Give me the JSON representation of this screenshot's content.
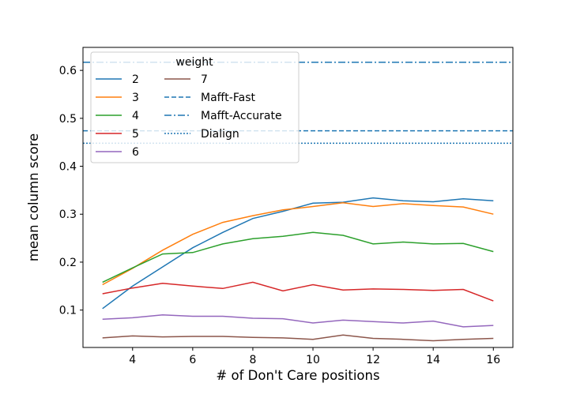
{
  "chart_data": {
    "type": "line",
    "title": "",
    "xlabel": "# of Don't Care positions",
    "ylabel": "mean column score",
    "xlim": [
      2.35,
      16.65
    ],
    "ylim": [
      0.022,
      0.648
    ],
    "xticks": [
      4,
      6,
      8,
      10,
      12,
      14,
      16
    ],
    "yticks": [
      0.1,
      0.2,
      0.3,
      0.4,
      0.5,
      0.6
    ],
    "grid": false,
    "legend": {
      "title": "weight",
      "placement": "upper-left",
      "columns": 2
    },
    "x": [
      3,
      4,
      5,
      6,
      7,
      8,
      9,
      10,
      11,
      12,
      13,
      14,
      15,
      16
    ],
    "series": [
      {
        "name": "2",
        "color": "#1f77b4",
        "values": [
          0.103,
          0.15,
          0.19,
          0.23,
          0.262,
          0.291,
          0.306,
          0.323,
          0.325,
          0.334,
          0.328,
          0.326,
          0.332,
          0.328
        ]
      },
      {
        "name": "3",
        "color": "#ff7f0e",
        "values": [
          0.153,
          0.187,
          0.225,
          0.258,
          0.283,
          0.297,
          0.309,
          0.316,
          0.324,
          0.316,
          0.322,
          0.318,
          0.315,
          0.3
        ]
      },
      {
        "name": "4",
        "color": "#2ca02c",
        "values": [
          0.158,
          0.188,
          0.217,
          0.22,
          0.238,
          0.249,
          0.254,
          0.262,
          0.256,
          0.238,
          0.242,
          0.238,
          0.239,
          0.222
        ]
      },
      {
        "name": "5",
        "color": "#d62728",
        "values": [
          0.134,
          0.146,
          0.156,
          0.15,
          0.145,
          0.158,
          0.14,
          0.153,
          0.142,
          0.144,
          0.143,
          0.141,
          0.143,
          0.119
        ]
      },
      {
        "name": "6",
        "color": "#9467bd",
        "values": [
          0.081,
          0.084,
          0.09,
          0.087,
          0.087,
          0.083,
          0.082,
          0.073,
          0.079,
          0.076,
          0.073,
          0.077,
          0.065,
          0.068
        ]
      },
      {
        "name": "7",
        "color": "#8c564b",
        "values": [
          0.042,
          0.046,
          0.044,
          0.045,
          0.045,
          0.043,
          0.042,
          0.039,
          0.048,
          0.041,
          0.039,
          0.036,
          0.039,
          0.041
        ]
      }
    ],
    "reference_lines": [
      {
        "name": "Mafft-Fast",
        "color": "#1f77b4",
        "style": "dashed",
        "value": 0.474
      },
      {
        "name": "Mafft-Accurate",
        "color": "#1f77b4",
        "style": "dashdot",
        "value": 0.617
      },
      {
        "name": "Dialign",
        "color": "#1f77b4",
        "style": "dotted",
        "value": 0.448
      }
    ]
  }
}
